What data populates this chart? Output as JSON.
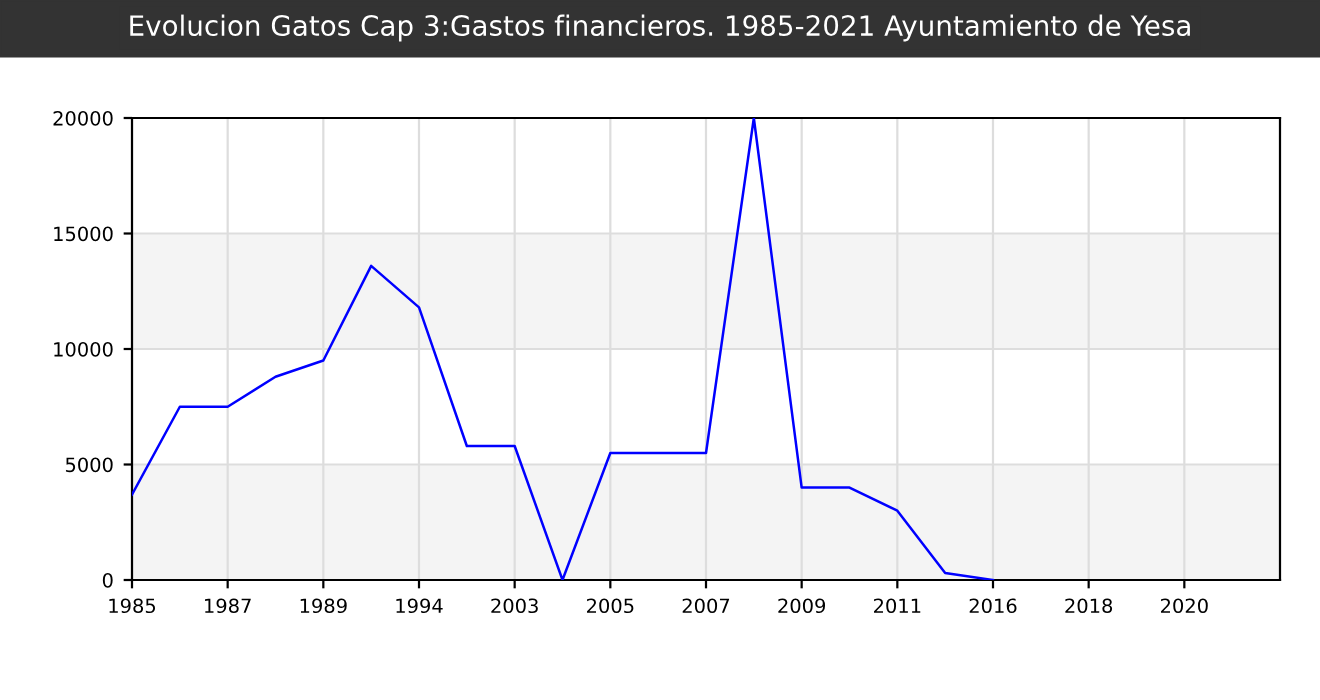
{
  "chart_data": {
    "type": "line",
    "title": "Evolucion Gatos Cap 3:Gastos financieros. 1985-2021 Ayuntamiento de Yesa",
    "categories": [
      "1985",
      null,
      "1987",
      null,
      "1989",
      null,
      "1994",
      null,
      "2003",
      null,
      "2005",
      null,
      "2007",
      null,
      "2009",
      null,
      "2011",
      null,
      "2016",
      null,
      "2018",
      null,
      "2020",
      null,
      null
    ],
    "series": [
      {
        "color": "#0000ff",
        "values": [
          3700,
          7500,
          7500,
          8800,
          9500,
          13600,
          11800,
          5800,
          5800,
          0,
          5500,
          5500,
          5500,
          20000,
          4000,
          4000,
          3000,
          300,
          0,
          null,
          null,
          null,
          null,
          null,
          null
        ]
      }
    ],
    "ylim": [
      0,
      20000
    ],
    "yticks": [
      0,
      5000,
      10000,
      15000,
      20000
    ],
    "bands": [
      {
        "axis": "y",
        "from": 0,
        "to": 5000,
        "color": "#f4f4f4"
      },
      {
        "axis": "y",
        "from": 10000,
        "to": 15000,
        "color": "#f4f4f4"
      }
    ],
    "grid": true,
    "marker": "none",
    "line_style": "solid"
  }
}
